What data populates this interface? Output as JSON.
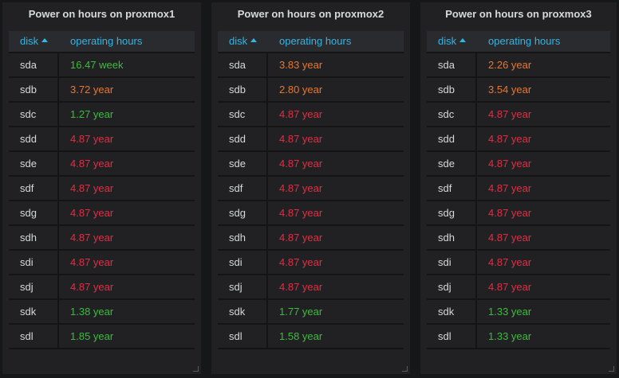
{
  "colors": {
    "green": "#3cbc3c",
    "orange": "#e8772e",
    "red": "#e02f44",
    "header": "#33b5e5"
  },
  "panels": [
    {
      "title": "Power on hours on proxmox1",
      "col_disk": "disk",
      "col_hours": "operating hours",
      "rows": [
        {
          "disk": "sda",
          "hours": "16.47 week",
          "status": "green"
        },
        {
          "disk": "sdb",
          "hours": "3.72 year",
          "status": "orange"
        },
        {
          "disk": "sdc",
          "hours": "1.27 year",
          "status": "green"
        },
        {
          "disk": "sdd",
          "hours": "4.87 year",
          "status": "red"
        },
        {
          "disk": "sde",
          "hours": "4.87 year",
          "status": "red"
        },
        {
          "disk": "sdf",
          "hours": "4.87 year",
          "status": "red"
        },
        {
          "disk": "sdg",
          "hours": "4.87 year",
          "status": "red"
        },
        {
          "disk": "sdh",
          "hours": "4.87 year",
          "status": "red"
        },
        {
          "disk": "sdi",
          "hours": "4.87 year",
          "status": "red"
        },
        {
          "disk": "sdj",
          "hours": "4.87 year",
          "status": "red"
        },
        {
          "disk": "sdk",
          "hours": "1.38 year",
          "status": "green"
        },
        {
          "disk": "sdl",
          "hours": "1.85 year",
          "status": "green"
        }
      ]
    },
    {
      "title": "Power on hours on proxmox2",
      "col_disk": "disk",
      "col_hours": "operating hours",
      "rows": [
        {
          "disk": "sda",
          "hours": "3.83 year",
          "status": "orange"
        },
        {
          "disk": "sdb",
          "hours": "2.80 year",
          "status": "orange"
        },
        {
          "disk": "sdc",
          "hours": "4.87 year",
          "status": "red"
        },
        {
          "disk": "sdd",
          "hours": "4.87 year",
          "status": "red"
        },
        {
          "disk": "sde",
          "hours": "4.87 year",
          "status": "red"
        },
        {
          "disk": "sdf",
          "hours": "4.87 year",
          "status": "red"
        },
        {
          "disk": "sdg",
          "hours": "4.87 year",
          "status": "red"
        },
        {
          "disk": "sdh",
          "hours": "4.87 year",
          "status": "red"
        },
        {
          "disk": "sdi",
          "hours": "4.87 year",
          "status": "red"
        },
        {
          "disk": "sdj",
          "hours": "4.87 year",
          "status": "red"
        },
        {
          "disk": "sdk",
          "hours": "1.77 year",
          "status": "green"
        },
        {
          "disk": "sdl",
          "hours": "1.58 year",
          "status": "green"
        }
      ]
    },
    {
      "title": "Power on hours on proxmox3",
      "col_disk": "disk",
      "col_hours": "operating hours",
      "rows": [
        {
          "disk": "sda",
          "hours": "2.26 year",
          "status": "orange"
        },
        {
          "disk": "sdb",
          "hours": "3.54 year",
          "status": "orange"
        },
        {
          "disk": "sdc",
          "hours": "4.87 year",
          "status": "red"
        },
        {
          "disk": "sdd",
          "hours": "4.87 year",
          "status": "red"
        },
        {
          "disk": "sde",
          "hours": "4.87 year",
          "status": "red"
        },
        {
          "disk": "sdf",
          "hours": "4.87 year",
          "status": "red"
        },
        {
          "disk": "sdg",
          "hours": "4.87 year",
          "status": "red"
        },
        {
          "disk": "sdh",
          "hours": "4.87 year",
          "status": "red"
        },
        {
          "disk": "sdi",
          "hours": "4.87 year",
          "status": "red"
        },
        {
          "disk": "sdj",
          "hours": "4.87 year",
          "status": "red"
        },
        {
          "disk": "sdk",
          "hours": "1.33 year",
          "status": "green"
        },
        {
          "disk": "sdl",
          "hours": "1.33 year",
          "status": "green"
        }
      ]
    }
  ]
}
